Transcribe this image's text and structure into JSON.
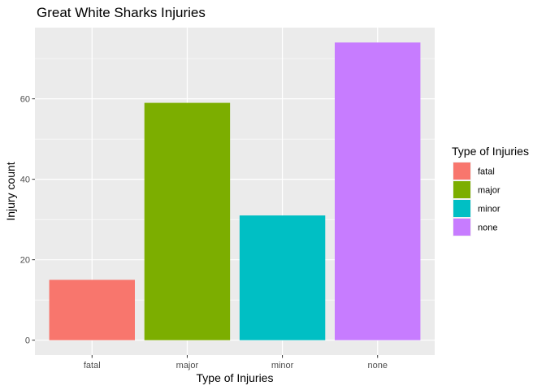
{
  "chart_data": {
    "type": "bar",
    "title": "Great White Sharks Injuries",
    "xlabel": "Type of Injuries",
    "ylabel": "Injury count",
    "categories": [
      "fatal",
      "major",
      "minor",
      "none"
    ],
    "values": [
      15,
      59,
      31,
      74
    ],
    "colors": [
      "#F8766D",
      "#7CAE00",
      "#00BFC4",
      "#C77CFF"
    ],
    "ylim": [
      -3.7,
      77.7
    ],
    "yticks": [
      0,
      20,
      40,
      60
    ],
    "ytick_labels": [
      "0",
      "20",
      "40",
      "60"
    ],
    "grid": true,
    "panel_background": "#EBEBEB",
    "legend": {
      "title": "Type of Injuries",
      "position": "right",
      "entries": [
        "fatal",
        "major",
        "minor",
        "none"
      ]
    }
  }
}
